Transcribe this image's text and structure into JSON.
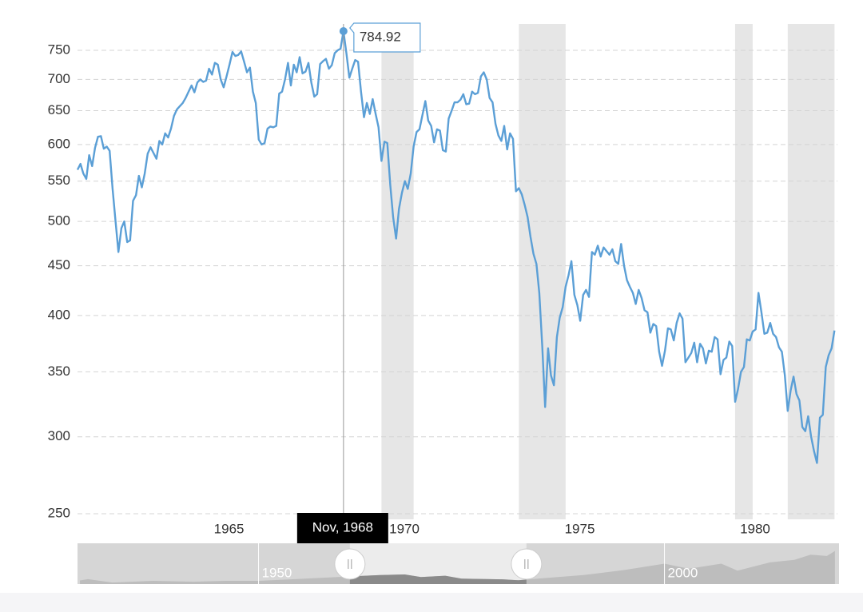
{
  "chart_data": {
    "type": "line",
    "yscale": "log",
    "ylim": [
      246.7,
      798.4
    ],
    "yticks": [
      250,
      300,
      350,
      400,
      450,
      500,
      550,
      600,
      650,
      700,
      750
    ],
    "xlim": [
      "1961-04",
      "1982-12"
    ],
    "xticks": [
      1965,
      1970,
      1975,
      1980
    ],
    "grid": true,
    "series": [
      {
        "color": "#5b9fd6",
        "x": [
          "1961-04",
          "1961-05",
          "1961-06",
          "1961-07",
          "1961-08",
          "1961-09",
          "1961-10",
          "1961-11",
          "1961-12",
          "1962-01",
          "1962-02",
          "1962-03",
          "1962-04",
          "1962-05",
          "1962-06",
          "1962-07",
          "1962-08",
          "1962-09",
          "1962-10",
          "1962-11",
          "1962-12",
          "1963-01",
          "1963-02",
          "1963-03",
          "1963-04",
          "1963-05",
          "1963-06",
          "1963-07",
          "1963-08",
          "1963-09",
          "1963-10",
          "1963-11",
          "1963-12",
          "1964-01",
          "1964-02",
          "1964-03",
          "1964-04",
          "1964-05",
          "1964-06",
          "1964-07",
          "1964-08",
          "1964-09",
          "1964-10",
          "1964-11",
          "1964-12",
          "1965-01",
          "1965-02",
          "1965-03",
          "1965-04",
          "1965-05",
          "1965-06",
          "1965-07",
          "1965-08",
          "1965-09",
          "1965-10",
          "1965-11",
          "1965-12",
          "1966-01",
          "1966-02",
          "1966-03",
          "1966-04",
          "1966-05",
          "1966-06",
          "1966-07",
          "1966-08",
          "1966-09",
          "1966-10",
          "1966-11",
          "1966-12",
          "1967-01",
          "1967-02",
          "1967-03",
          "1967-04",
          "1967-05",
          "1967-06",
          "1967-07",
          "1967-08",
          "1967-09",
          "1967-10",
          "1967-11",
          "1967-12",
          "1968-01",
          "1968-02",
          "1968-03",
          "1968-04",
          "1968-05",
          "1968-06",
          "1968-07",
          "1968-08",
          "1968-09",
          "1968-10",
          "1968-11",
          "1968-12",
          "1969-01",
          "1969-02",
          "1969-03",
          "1969-04",
          "1969-05",
          "1969-06",
          "1969-07",
          "1969-08",
          "1969-09",
          "1969-10",
          "1969-11",
          "1969-12",
          "1970-01",
          "1970-02",
          "1970-03",
          "1970-04",
          "1970-05",
          "1970-06",
          "1970-07",
          "1970-08",
          "1970-09",
          "1970-10",
          "1970-11",
          "1970-12",
          "1971-01",
          "1971-02",
          "1971-03",
          "1971-04",
          "1971-05",
          "1971-06",
          "1971-07",
          "1971-08",
          "1971-09",
          "1971-10",
          "1971-11",
          "1971-12",
          "1972-01",
          "1972-02",
          "1972-03",
          "1972-04",
          "1972-05",
          "1972-06",
          "1972-07",
          "1972-08",
          "1972-09",
          "1972-10",
          "1972-11",
          "1972-12",
          "1973-01",
          "1973-02",
          "1973-03",
          "1973-04",
          "1973-05",
          "1973-06",
          "1973-07",
          "1973-08",
          "1973-09",
          "1973-10",
          "1973-11",
          "1973-12",
          "1974-01",
          "1974-02",
          "1974-03",
          "1974-04",
          "1974-05",
          "1974-06",
          "1974-07",
          "1974-08",
          "1974-09",
          "1974-10",
          "1974-11",
          "1974-12",
          "1975-01",
          "1975-02",
          "1975-03",
          "1975-04",
          "1975-05",
          "1975-06",
          "1975-07",
          "1975-08",
          "1975-09",
          "1975-10",
          "1975-11",
          "1975-12",
          "1976-01",
          "1976-02",
          "1976-03",
          "1976-04",
          "1976-05",
          "1976-06",
          "1976-07",
          "1976-08",
          "1976-09",
          "1976-10",
          "1976-11",
          "1976-12",
          "1977-01",
          "1977-02",
          "1977-03",
          "1977-04",
          "1977-05",
          "1977-06",
          "1977-07",
          "1977-08",
          "1977-09",
          "1977-10",
          "1977-11",
          "1977-12",
          "1978-01",
          "1978-02",
          "1978-03",
          "1978-04",
          "1978-05",
          "1978-06",
          "1978-07",
          "1978-08",
          "1978-09",
          "1978-10",
          "1978-11",
          "1978-12",
          "1979-01",
          "1979-02",
          "1979-03",
          "1979-04",
          "1979-05",
          "1979-06",
          "1979-07",
          "1979-08",
          "1979-09",
          "1979-10",
          "1979-11",
          "1979-12",
          "1980-01",
          "1980-02",
          "1980-03",
          "1980-04",
          "1980-05",
          "1980-06",
          "1980-07",
          "1980-08",
          "1980-09",
          "1980-10",
          "1980-11",
          "1980-12",
          "1981-01",
          "1981-02",
          "1981-03",
          "1981-04",
          "1981-05",
          "1981-06",
          "1981-07",
          "1981-08",
          "1981-09",
          "1981-10",
          "1981-11",
          "1981-12",
          "1982-01",
          "1982-02",
          "1982-03",
          "1982-04",
          "1982-05",
          "1982-06",
          "1982-07",
          "1982-08",
          "1982-09",
          "1982-10",
          "1982-11"
        ],
        "values": [
          565,
          573,
          560,
          553,
          585,
          570,
          595,
          611,
          612,
          594,
          597,
          591,
          540,
          500,
          465,
          492,
          500,
          476,
          478,
          525,
          532,
          557,
          542,
          560,
          587,
          596,
          588,
          580,
          605,
          600,
          616,
          610,
          623,
          642,
          652,
          657,
          662,
          670,
          680,
          690,
          679,
          695,
          700,
          696,
          698,
          718,
          708,
          728,
          725,
          700,
          687,
          705,
          725,
          747,
          740,
          742,
          748,
          730,
          712,
          720,
          680,
          662,
          607,
          600,
          602,
          623,
          626,
          625,
          627,
          677,
          680,
          700,
          728,
          690,
          725,
          712,
          738,
          710,
          713,
          728,
          695,
          672,
          676,
          726,
          731,
          735,
          718,
          724,
          745,
          750,
          753,
          784.92,
          745,
          703,
          718,
          733,
          730,
          680,
          640,
          662,
          645,
          668,
          645,
          625,
          577,
          604,
          602,
          545,
          505,
          480,
          515,
          535,
          550,
          540,
          560,
          597,
          618,
          622,
          643,
          665,
          635,
          627,
          603,
          622,
          620,
          592,
          590,
          638,
          650,
          663,
          663,
          667,
          676,
          660,
          661,
          680,
          676,
          678,
          705,
          712,
          700,
          670,
          663,
          630,
          613,
          605,
          627,
          593,
          616,
          608,
          537,
          541,
          533,
          520,
          505,
          482,
          463,
          452,
          422,
          372,
          322,
          370,
          347,
          339,
          380,
          398,
          408,
          428,
          440,
          455,
          420,
          410,
          395,
          420,
          425,
          418,
          465,
          462,
          472,
          460,
          470,
          466,
          462,
          468,
          455,
          452,
          474,
          450,
          435,
          428,
          422,
          411,
          425,
          417,
          405,
          403,
          384,
          392,
          390,
          367,
          355,
          368,
          388,
          387,
          377,
          393,
          402,
          397,
          358,
          362,
          366,
          375,
          358,
          374,
          370,
          357,
          368,
          367,
          380,
          378,
          348,
          360,
          362,
          376,
          372,
          326,
          336,
          350,
          354,
          378,
          377,
          385,
          387,
          422,
          403,
          383,
          384,
          393,
          383,
          380,
          371,
          367,
          347,
          319,
          335,
          346,
          332,
          327,
          307,
          304,
          315,
          300,
          290,
          282,
          314,
          316,
          354,
          364,
          370,
          386
        ]
      }
    ],
    "shaded": [
      {
        "start": "1969-12",
        "end": "1970-11"
      },
      {
        "start": "1973-11",
        "end": "1975-03"
      },
      {
        "start": "1980-01",
        "end": "1980-07"
      },
      {
        "start": "1981-07",
        "end": "1982-11"
      }
    ],
    "shade_color": "#e6e6e6",
    "tooltip": {
      "x": "1968-11",
      "label": "Nov, 1968"
    },
    "navigator": {
      "x": [
        1928,
        1929,
        1932,
        1937,
        1942,
        1946,
        1950,
        1955,
        1960,
        1965,
        1968,
        1970,
        1973,
        1975,
        1980,
        1982,
        1985,
        1990,
        1995,
        2000,
        2003,
        2007,
        2009,
        2013,
        2016,
        2018,
        2020,
        2021
      ],
      "values": [
        280,
        380,
        120,
        250,
        180,
        250,
        250,
        400,
        560,
        700,
        750,
        550,
        650,
        420,
        370,
        300,
        450,
        700,
        1100,
        1600,
        1200,
        1600,
        1050,
        1700,
        1900,
        2300,
        2200,
        2600
      ],
      "xlim": [
        1927.7,
        2021.5
      ],
      "ylim": [
        0,
        3200
      ],
      "xticks": [
        1950,
        2000
      ]
    }
  }
}
